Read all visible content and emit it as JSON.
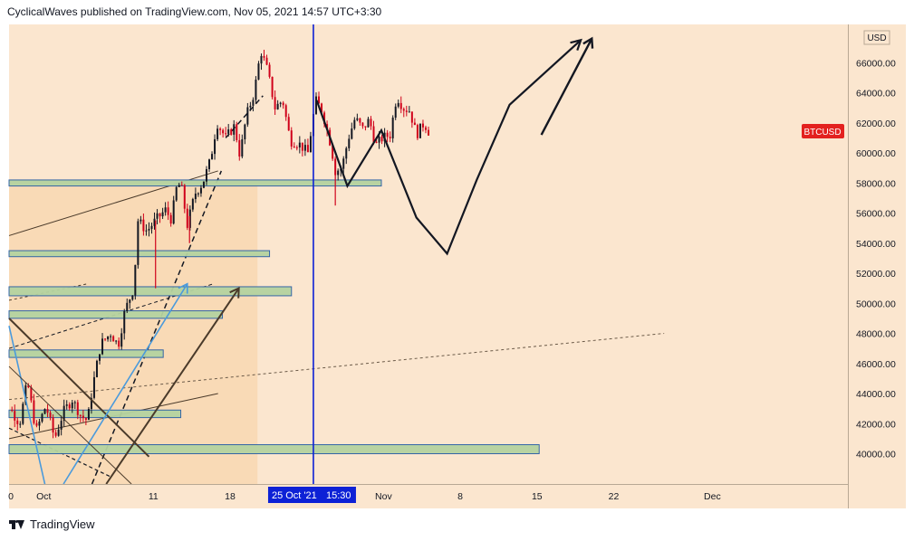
{
  "header": {
    "text": "CyclicalWaves published on TradingView.com, Nov 05, 2021 14:57 UTC+3:30"
  },
  "footer": {
    "brand": "TradingView"
  },
  "colors": {
    "background": "#fbe6cf",
    "up": "#131722",
    "down": "#d0021b",
    "zone_fill": "#b5d3a0",
    "zone_border": "#2a5fa5",
    "crosshair": "#0d21d6",
    "badge": "#e3211f"
  },
  "chart_data": {
    "type": "candlestick",
    "symbol_label": "BTCUSD",
    "currency": "USD",
    "ylim": [
      38000,
      68000
    ],
    "y_ticks": [
      {
        "v": 66000,
        "label": "66000.00"
      },
      {
        "v": 64000,
        "label": "64000.00"
      },
      {
        "v": 62000,
        "label": "62000.00"
      },
      {
        "v": 60000,
        "label": "60000.00"
      },
      {
        "v": 58000,
        "label": "58000.00"
      },
      {
        "v": 56000,
        "label": "56000.00"
      },
      {
        "v": 54000,
        "label": "54000.00"
      },
      {
        "v": 52000,
        "label": "52000.00"
      },
      {
        "v": 50000,
        "label": "50000.00"
      },
      {
        "v": 48000,
        "label": "48000.00"
      },
      {
        "v": 46000,
        "label": "46000.00"
      },
      {
        "v": 44000,
        "label": "44000.00"
      },
      {
        "v": 42000,
        "label": "42000.00"
      },
      {
        "v": 40000,
        "label": "40000.00"
      }
    ],
    "x_ticks": [
      {
        "day": 0,
        "label": "0"
      },
      {
        "day": 3,
        "label": "Oct"
      },
      {
        "day": 13,
        "label": "11"
      },
      {
        "day": 20,
        "label": "18"
      },
      {
        "day": 34,
        "label": "Nov"
      },
      {
        "day": 41,
        "label": "8"
      },
      {
        "day": 48,
        "label": "15"
      },
      {
        "day": 55,
        "label": "22"
      },
      {
        "day": 64,
        "label": "Dec"
      }
    ],
    "crosshair": {
      "day": 27.6,
      "date_label": "25 Oct '21",
      "time_label": "15:30"
    },
    "last_price": 61300,
    "ohlc_note": "Daily candles, 4-hour resolution, late Sep to Nov 05 2021",
    "path": [
      [
        -1.4,
        48000
      ],
      [
        -0.5,
        43500
      ],
      [
        0.8,
        42000
      ],
      [
        1.5,
        44800
      ],
      [
        2.3,
        41500
      ],
      [
        3.2,
        43200
      ],
      [
        4.0,
        41000
      ],
      [
        4.8,
        42800
      ],
      [
        5.6,
        43600
      ],
      [
        6.4,
        42500
      ],
      [
        7.0,
        42200
      ],
      [
        7.4,
        44200
      ],
      [
        8.2,
        47300
      ],
      [
        9.1,
        48000
      ],
      [
        9.8,
        47200
      ],
      [
        10.4,
        49500
      ],
      [
        11.2,
        51000
      ],
      [
        11.6,
        55500
      ],
      [
        12.4,
        54800
      ],
      [
        13.3,
        55600
      ],
      [
        14.1,
        56200
      ],
      [
        14.7,
        55500
      ],
      [
        15.0,
        57500
      ],
      [
        15.5,
        58000
      ],
      [
        16.1,
        55200
      ],
      [
        16.8,
        57300
      ],
      [
        17.5,
        58000
      ],
      [
        18.2,
        59500
      ],
      [
        18.8,
        62000
      ],
      [
        19.6,
        61000
      ],
      [
        20.4,
        61800
      ],
      [
        20.9,
        59800
      ],
      [
        21.5,
        62500
      ],
      [
        22.2,
        64000
      ],
      [
        22.8,
        66800
      ],
      [
        23.4,
        65500
      ],
      [
        24.1,
        63000
      ],
      [
        24.8,
        63500
      ],
      [
        25.5,
        60800
      ],
      [
        26.3,
        60600
      ],
      [
        27.1,
        60000
      ],
      [
        27.8,
        63500
      ],
      [
        28.4,
        62800
      ],
      [
        29.2,
        60500
      ],
      [
        29.6,
        58800
      ],
      [
        30.2,
        59000
      ],
      [
        30.8,
        61000
      ],
      [
        31.4,
        62300
      ],
      [
        32.1,
        61600
      ],
      [
        32.7,
        62200
      ],
      [
        33.3,
        60500
      ],
      [
        33.9,
        61000
      ],
      [
        34.6,
        61200
      ],
      [
        35.2,
        63800
      ],
      [
        35.8,
        63000
      ],
      [
        36.4,
        62800
      ],
      [
        37.0,
        61200
      ],
      [
        37.7,
        62000
      ],
      [
        38.2,
        61300
      ]
    ],
    "wicks": [
      [
        13.2,
        51000
      ],
      [
        16.3,
        54000
      ],
      [
        29.6,
        56500
      ]
    ],
    "zones": [
      {
        "from_day": -1.5,
        "to_day": 48.2,
        "lo": 40000,
        "hi": 40600
      },
      {
        "from_day": -1.5,
        "to_day": 15.5,
        "lo": 42400,
        "hi": 42900
      },
      {
        "from_day": -1.5,
        "to_day": 13.9,
        "lo": 46400,
        "hi": 46900
      },
      {
        "from_day": -1.5,
        "to_day": 19.3,
        "lo": 49000,
        "hi": 49500
      },
      {
        "from_day": -1.5,
        "to_day": 25.6,
        "lo": 50500,
        "hi": 51100
      },
      {
        "from_day": -1.5,
        "to_day": 23.6,
        "lo": 53100,
        "hi": 53500
      },
      {
        "from_day": -1.5,
        "to_day": 33.8,
        "lo": 57800,
        "hi": 58200
      }
    ],
    "forecast_path": [
      [
        27.9,
        63500
      ],
      [
        30.7,
        57800
      ],
      [
        33.8,
        61500
      ],
      [
        37.0,
        55700
      ],
      [
        39.8,
        53300
      ],
      [
        42.5,
        58200
      ],
      [
        45.5,
        63200
      ],
      [
        52.0,
        67500
      ]
    ],
    "arrows": [
      {
        "from": [
          -0.8,
          49000
        ],
        "to": [
          12.6,
          39800
        ],
        "color": "#4a3a2a",
        "width": 2
      },
      {
        "from": [
          8.7,
          35000
        ],
        "to": [
          20.8,
          51000
        ],
        "color": "#4a3a2a",
        "width": 2
      },
      {
        "from": [
          4.8,
          36500
        ],
        "to": [
          16.1,
          51300
        ],
        "color": "#4a9adc",
        "width": 1.6
      },
      {
        "from": [
          -0.8,
          48500
        ],
        "to": [
          3.1,
          36500
        ],
        "color": "#4a9adc",
        "width": 1.6
      },
      {
        "from": [
          48.4,
          61200
        ],
        "to": [
          53.0,
          67600
        ],
        "color": "#131722",
        "width": 2.4
      },
      {
        "from": [
          -1.0,
          45800
        ],
        "to": [
          11.0,
          34200
        ],
        "color": "#4a3a2a",
        "width": 1
      }
    ],
    "lines": [
      {
        "from": [
          -1.4,
          54500
        ],
        "to": [
          18.9,
          58800
        ],
        "color": "#4a3a2a",
        "width": 1,
        "dash": ""
      },
      {
        "from": [
          -1.4,
          41000
        ],
        "to": [
          18.9,
          44000
        ],
        "color": "#4a3a2a",
        "width": 1,
        "dash": ""
      },
      {
        "from": [
          -1.4,
          47000
        ],
        "to": [
          18.5,
          51300
        ],
        "color": "#131722",
        "width": 1,
        "dash": "4,3"
      },
      {
        "from": [
          -1.4,
          50200
        ],
        "to": [
          7.0,
          51300
        ],
        "color": "#4a3a2a",
        "width": 1,
        "dash": "3,3"
      },
      {
        "from": [
          -1.4,
          43600
        ],
        "to": [
          59.6,
          48000
        ],
        "color": "#6b5a48",
        "width": 1,
        "dash": "3,3"
      },
      {
        "from": [
          7.4,
          36500
        ],
        "to": [
          19.2,
          58800
        ],
        "color": "#131722",
        "width": 1.5,
        "dash": "6,4"
      },
      {
        "from": [
          19.6,
          61000
        ],
        "to": [
          23.0,
          63800
        ],
        "color": "#131722",
        "width": 1.5,
        "dash": "6,4"
      },
      {
        "from": [
          -1.4,
          41700
        ],
        "to": [
          9.0,
          38500
        ],
        "color": "#131722",
        "width": 1.2,
        "dash": "4,3"
      }
    ],
    "shaded_region": {
      "from_day": -1.5,
      "to_day": 22.5,
      "lo": 38000,
      "hi": 58200
    }
  }
}
